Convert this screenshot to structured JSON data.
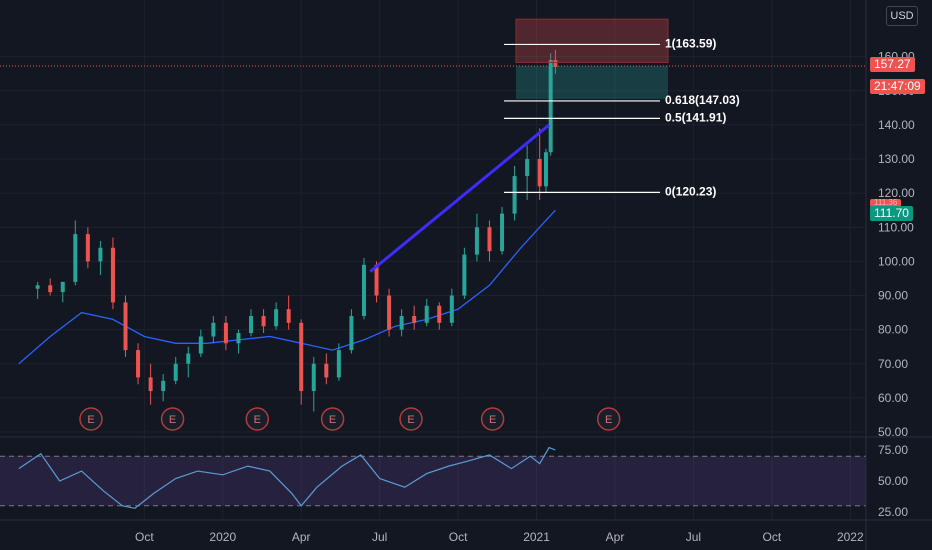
{
  "currency_label": "USD",
  "labels": {
    "current_price": "157.27",
    "countdown": "21:47:09",
    "level_2": "111.70",
    "level_2_hidden": "111.36"
  },
  "fib_levels": [
    {
      "ratio_label": "1(163.59)",
      "value": 163.59
    },
    {
      "ratio_label": "0.618(147.03)",
      "value": 147.03
    },
    {
      "ratio_label": "0.5(141.91)",
      "value": 141.91
    },
    {
      "ratio_label": "0(120.23)",
      "value": 120.23
    }
  ],
  "earnings_marker_label": "E",
  "colors": {
    "background": "#131722",
    "up": "#26a69a",
    "down": "#ef5350",
    "ma": "#2962ff",
    "trendline": "#3d2bff",
    "rsi": "#5b9bd5",
    "rsi_band": "#7e57c2"
  },
  "chart_data": [
    {
      "type": "candlestick",
      "ylim": [
        45,
        172
      ],
      "y_ticks": [
        "50.00",
        "60.00",
        "70.00",
        "80.00",
        "90.00",
        "100.00",
        "110.00",
        "120.00",
        "130.00",
        "140.00",
        "150.00",
        "160.00"
      ],
      "x_ticks": [
        "Oct",
        "2020",
        "Apr",
        "Jul",
        "Oct",
        "2021",
        "Apr",
        "Jul",
        "Oct",
        "2022"
      ],
      "candles": [
        [
          2019.41,
          92,
          94,
          89,
          93
        ],
        [
          2019.45,
          93,
          95,
          90,
          91
        ],
        [
          2019.49,
          91,
          94,
          88,
          94
        ],
        [
          2019.53,
          94,
          112,
          93,
          108
        ],
        [
          2019.57,
          108,
          110,
          98,
          100
        ],
        [
          2019.61,
          100,
          106,
          96,
          104
        ],
        [
          2019.65,
          104,
          107,
          86,
          88
        ],
        [
          2019.69,
          88,
          90,
          72,
          74
        ],
        [
          2019.73,
          74,
          76,
          64,
          66
        ],
        [
          2019.77,
          66,
          70,
          58,
          62
        ],
        [
          2019.81,
          62,
          67,
          59,
          65
        ],
        [
          2019.85,
          65,
          72,
          64,
          70
        ],
        [
          2019.89,
          70,
          75,
          66,
          73
        ],
        [
          2019.93,
          73,
          80,
          72,
          78
        ],
        [
          2019.97,
          78,
          84,
          76,
          82
        ],
        [
          2020.01,
          82,
          84,
          74,
          76
        ],
        [
          2020.05,
          76,
          80,
          73,
          79
        ],
        [
          2020.09,
          79,
          86,
          78,
          84
        ],
        [
          2020.13,
          84,
          86,
          79,
          81
        ],
        [
          2020.17,
          81,
          88,
          80,
          86
        ],
        [
          2020.21,
          86,
          90,
          80,
          82
        ],
        [
          2020.25,
          82,
          83,
          58,
          62
        ],
        [
          2020.29,
          62,
          72,
          56,
          70
        ],
        [
          2020.33,
          70,
          73,
          64,
          66
        ],
        [
          2020.37,
          66,
          76,
          65,
          74
        ],
        [
          2020.41,
          74,
          86,
          73,
          84
        ],
        [
          2020.45,
          84,
          101,
          83,
          99
        ],
        [
          2020.49,
          99,
          100,
          88,
          90
        ],
        [
          2020.53,
          90,
          92,
          78,
          80
        ],
        [
          2020.57,
          80,
          86,
          78,
          84
        ],
        [
          2020.61,
          84,
          87,
          80,
          82
        ],
        [
          2020.65,
          82,
          89,
          81,
          87
        ],
        [
          2020.69,
          87,
          88,
          80,
          82
        ],
        [
          2020.73,
          82,
          92,
          81,
          90
        ],
        [
          2020.77,
          90,
          104,
          89,
          102
        ],
        [
          2020.81,
          102,
          114,
          100,
          110
        ],
        [
          2020.85,
          110,
          112,
          100,
          103
        ],
        [
          2020.89,
          103,
          116,
          102,
          114
        ],
        [
          2020.93,
          114,
          128,
          112,
          125
        ],
        [
          2020.97,
          125,
          134,
          118,
          130
        ],
        [
          2021.01,
          130,
          139,
          118,
          122
        ],
        [
          2021.03,
          122,
          133,
          120,
          132
        ],
        [
          2021.045,
          132,
          161,
          131,
          159
        ],
        [
          2021.06,
          159,
          162,
          155,
          157
        ]
      ],
      "ma": [
        [
          2019.35,
          70
        ],
        [
          2019.45,
          78
        ],
        [
          2019.55,
          85
        ],
        [
          2019.65,
          83
        ],
        [
          2019.75,
          78
        ],
        [
          2019.85,
          76
        ],
        [
          2019.95,
          76
        ],
        [
          2020.05,
          77
        ],
        [
          2020.15,
          78
        ],
        [
          2020.25,
          76
        ],
        [
          2020.35,
          74
        ],
        [
          2020.45,
          77
        ],
        [
          2020.55,
          81
        ],
        [
          2020.65,
          83
        ],
        [
          2020.75,
          86
        ],
        [
          2020.85,
          93
        ],
        [
          2020.95,
          104
        ],
        [
          2021.02,
          111
        ],
        [
          2021.06,
          115
        ]
      ],
      "trendline": [
        [
          2020.47,
          97
        ],
        [
          2021.04,
          140
        ]
      ],
      "earnings_x": [
        2019.58,
        2019.84,
        2020.11,
        2020.35,
        2020.6,
        2020.86,
        2021.23
      ]
    },
    {
      "type": "line",
      "ylim": [
        20,
        82
      ],
      "y_ticks": [
        "25.00",
        "50.00",
        "75.00"
      ],
      "band": [
        30,
        70
      ],
      "rsi": [
        [
          2019.35,
          60
        ],
        [
          2019.42,
          72
        ],
        [
          2019.48,
          50
        ],
        [
          2019.55,
          58
        ],
        [
          2019.62,
          42
        ],
        [
          2019.68,
          30
        ],
        [
          2019.72,
          28
        ],
        [
          2019.78,
          40
        ],
        [
          2019.85,
          52
        ],
        [
          2019.92,
          58
        ],
        [
          2020.0,
          55
        ],
        [
          2020.08,
          62
        ],
        [
          2020.15,
          58
        ],
        [
          2020.22,
          40
        ],
        [
          2020.25,
          30
        ],
        [
          2020.3,
          45
        ],
        [
          2020.38,
          62
        ],
        [
          2020.44,
          71
        ],
        [
          2020.5,
          52
        ],
        [
          2020.58,
          45
        ],
        [
          2020.65,
          56
        ],
        [
          2020.72,
          62
        ],
        [
          2020.78,
          66
        ],
        [
          2020.85,
          71
        ],
        [
          2020.92,
          60
        ],
        [
          2020.98,
          70
        ],
        [
          2021.01,
          64
        ],
        [
          2021.04,
          77
        ],
        [
          2021.06,
          75
        ]
      ]
    }
  ]
}
